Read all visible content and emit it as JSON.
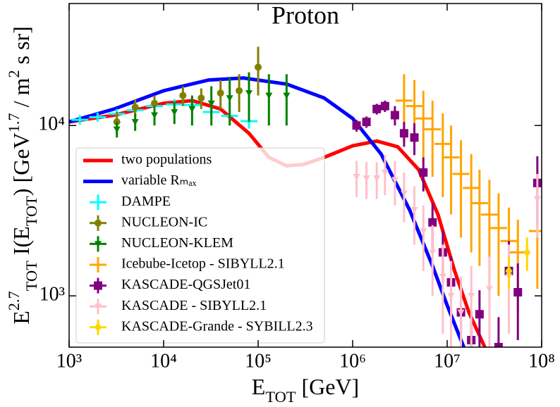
{
  "chart_data": {
    "type": "line",
    "title": "Proton",
    "xlabel": [
      {
        "text": "E"
      },
      {
        "text": "TOT",
        "sub": true
      },
      {
        "text": " [GeV]"
      }
    ],
    "ylabel": [
      {
        "text": "E"
      },
      {
        "text": "2.7",
        "sup": true
      },
      {
        "text": "TOT",
        "sub": true
      },
      {
        "text": " I(E"
      },
      {
        "text": "TOT",
        "sub": true
      },
      {
        "text": ") [GeV"
      },
      {
        "text": "1.7",
        "sup": true
      },
      {
        "text": " / m"
      },
      {
        "text": "2",
        "sup": true
      },
      {
        "text": " s sr]"
      }
    ],
    "xscale": "log",
    "yscale": "log",
    "xlim": [
      1000,
      100000000
    ],
    "ylim": [
      500,
      52000
    ],
    "xticks": [
      {
        "value": 1000,
        "label": "10³"
      },
      {
        "value": 10000,
        "label": "10⁴"
      },
      {
        "value": 100000,
        "label": "10⁵"
      },
      {
        "value": 1000000,
        "label": "10⁶"
      },
      {
        "value": 10000000,
        "label": "10⁷"
      },
      {
        "value": 100000000,
        "label": "10⁸"
      }
    ],
    "yticks": [
      {
        "value": 1000,
        "label": "10³"
      },
      {
        "value": 10000,
        "label": "10⁴"
      }
    ],
    "legend": "lower left",
    "series": [
      {
        "name": "two populations",
        "type": "line",
        "color": "#ff0000",
        "x": [
          1000,
          3000,
          10000,
          20000,
          40000,
          80000,
          130000,
          200000,
          300000,
          500000,
          1000000,
          1800000,
          3000000,
          5000000,
          8000000,
          12000000,
          17000000,
          25000000
        ],
        "values": [
          10500,
          11500,
          13500,
          14000,
          12500,
          9000,
          6500,
          5800,
          5900,
          6500,
          7600,
          8100,
          7500,
          5500,
          3000,
          1400,
          800,
          500
        ]
      },
      {
        "name": "variable Rₘₐₓ",
        "type": "line",
        "color": "#0000ff",
        "x": [
          1000,
          3000,
          10000,
          30000,
          70000,
          200000,
          500000,
          1000000,
          2000000,
          4000000,
          7000000,
          10000000,
          15000000
        ],
        "values": [
          10500,
          12500,
          16000,
          18500,
          19000,
          17500,
          14500,
          11000,
          6800,
          3200,
          1500,
          880,
          500
        ]
      },
      {
        "name": "DAMPE",
        "type": "scatter",
        "marker": "+",
        "color": "#00ffff",
        "x": [
          1300,
          2000,
          3200,
          5000,
          8000,
          13000,
          20000,
          32000,
          50000,
          80000
        ],
        "values": [
          10800,
          11200,
          11700,
          12300,
          13000,
          13300,
          13200,
          12000,
          11400,
          10600
        ],
        "errors": [
          700,
          700,
          800,
          800,
          900,
          1000,
          1000,
          1000,
          1000,
          1000
        ]
      },
      {
        "name": "NUCLEON-IC",
        "type": "scatter",
        "marker": "o",
        "color": "#808000",
        "x": [
          3200,
          5000,
          8000,
          16000,
          25000,
          40000,
          63000,
          100000
        ],
        "values": [
          10500,
          12800,
          13500,
          15000,
          14500,
          15500,
          16000,
          22000
        ],
        "errors": [
          1500,
          1500,
          1500,
          2000,
          2000,
          3000,
          4000,
          7000
        ]
      },
      {
        "name": "NUCLEON-KLEM",
        "type": "scatter",
        "marker": "v",
        "color": "#008000",
        "x": [
          3200,
          5000,
          8000,
          13000,
          20000,
          32000,
          50000,
          80000,
          130000,
          200000
        ],
        "values": [
          9500,
          10500,
          11500,
          12000,
          12500,
          13500,
          14500,
          15500,
          15000,
          15000
        ],
        "errors": [
          1000,
          1200,
          1500,
          1800,
          2500,
          3500,
          4500,
          5000,
          5000,
          5000
        ]
      },
      {
        "name": "Icebube-Icetop - SIBYLL2.1",
        "type": "scatter",
        "marker": "+",
        "color": "#ffa500",
        "x": [
          3500000,
          4500000,
          5600000,
          7000000,
          9000000,
          11000000,
          14000000,
          18000000,
          22000000,
          28000000,
          35000000,
          45000000,
          56000000,
          90000000
        ],
        "values": [
          14000,
          13000,
          11000,
          9500,
          7800,
          6500,
          5200,
          4300,
          3500,
          3000,
          2500,
          2100,
          1800,
          2400
        ],
        "errors": [
          6000,
          5500,
          5000,
          4500,
          4000,
          3500,
          3000,
          2500,
          2000,
          1800,
          1500,
          1200,
          1000,
          1300
        ]
      },
      {
        "name": "KASCADE-QGSJet01",
        "type": "scatter",
        "marker": "s",
        "color": "#800080",
        "x": [
          1100000,
          1400000,
          1800000,
          2200000,
          2800000,
          3500000,
          4500000,
          5600000,
          7000000,
          9000000,
          11000000,
          14000000,
          18000000,
          22000000,
          35000000,
          45000000,
          56000000,
          90000000
        ],
        "values": [
          10000,
          10500,
          12500,
          13000,
          11500,
          9000,
          8500,
          5300,
          2700,
          1800,
          1200,
          800,
          550,
          780,
          500,
          1400,
          1050,
          4600
        ],
        "errors": [
          800,
          800,
          900,
          1000,
          1500,
          1500,
          1800,
          1200,
          800,
          600,
          500,
          350,
          250,
          300,
          250,
          700,
          500,
          2000
        ]
      },
      {
        "name": "KASCADE - SIBYLL2.1",
        "type": "scatter",
        "marker": "v",
        "color": "#ffc0cb",
        "x": [
          1100000,
          1400000,
          1800000,
          2200000,
          2800000,
          3500000,
          4500000,
          5600000,
          7000000,
          9000000,
          11000000,
          14000000,
          18000000,
          28000000,
          45000000,
          90000000
        ],
        "values": [
          5000,
          4900,
          4900,
          5300,
          4800,
          4000,
          3200,
          2400,
          1800,
          1300,
          1000,
          800,
          1000,
          1100,
          1300,
          3700
        ],
        "errors": [
          1200,
          1200,
          1200,
          1400,
          1400,
          1300,
          1200,
          1000,
          800,
          700,
          600,
          500,
          500,
          600,
          700,
          1500
        ]
      },
      {
        "name": "KASCADE-Grande - SYBILL2.3",
        "type": "scatter",
        "marker": "d",
        "color": "#ffd700",
        "x": [
          45000000,
          70000000
        ],
        "values": [
          1400,
          1800
        ],
        "errors": [
          300,
          400
        ]
      }
    ]
  }
}
